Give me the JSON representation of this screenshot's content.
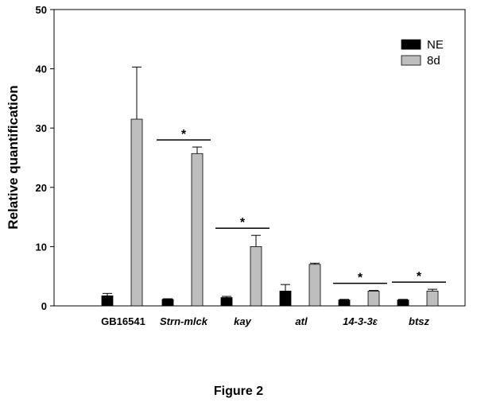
{
  "caption": "Figure 2",
  "chart_data": {
    "type": "bar",
    "ylabel": "Relative quantification",
    "xlabel": "",
    "ylim": [
      0,
      50
    ],
    "yticks": [
      0,
      10,
      20,
      30,
      40,
      50
    ],
    "categories": [
      "GB16541",
      "Strn-mlck",
      "kay",
      "atl",
      "14-3-3ε",
      "btsz"
    ],
    "italic_categories": [
      false,
      true,
      true,
      true,
      true,
      true
    ],
    "series": [
      {
        "name": "NE",
        "color": "#000000",
        "values": [
          1.7,
          1.1,
          1.4,
          2.5,
          1.0,
          1.0
        ],
        "errors": [
          0.4,
          0.1,
          0.2,
          1.1,
          0.1,
          0.1
        ]
      },
      {
        "name": "8d",
        "color": "#bebebe",
        "values": [
          31.5,
          25.7,
          10.0,
          7.0,
          2.5,
          2.5
        ],
        "errors": [
          8.8,
          1.1,
          1.9,
          0.2,
          0.1,
          0.3
        ]
      }
    ],
    "significance_marker": "*",
    "significant_categories": [
      1,
      2,
      4,
      5
    ],
    "legend_position": "top-right",
    "grid": false
  }
}
